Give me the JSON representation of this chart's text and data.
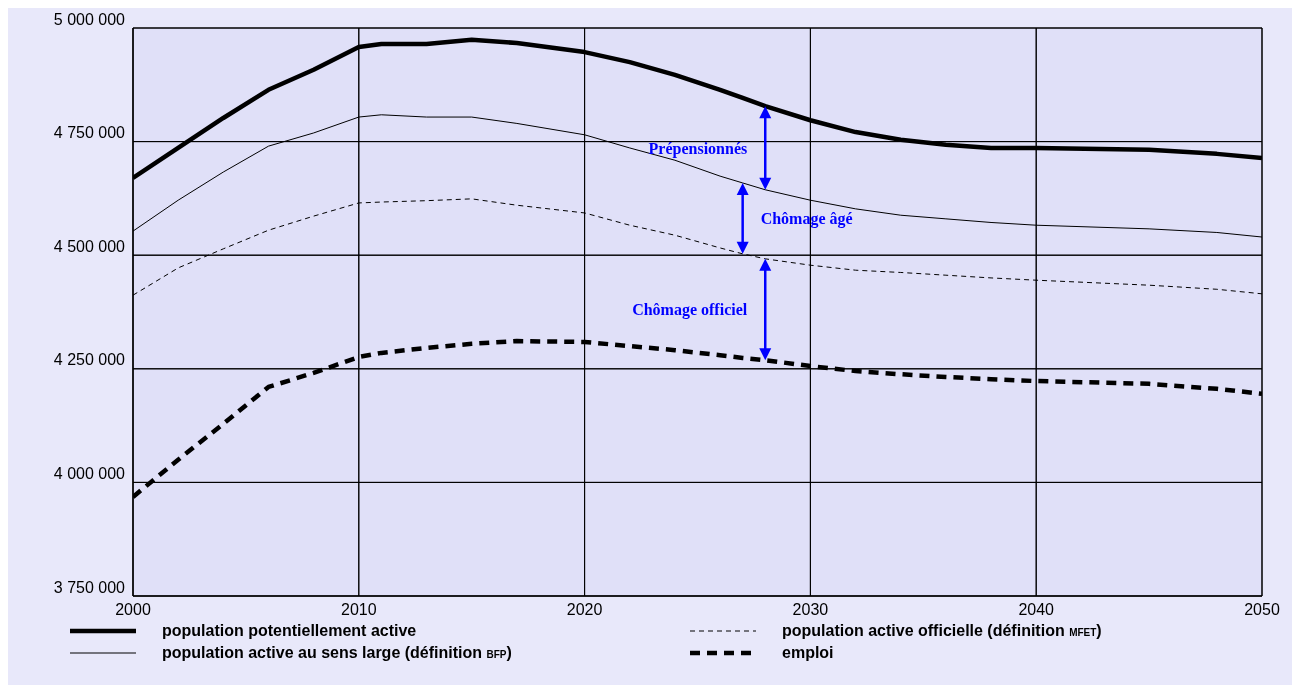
{
  "chart_data": {
    "type": "line",
    "x": [
      2000,
      2002,
      2004,
      2006,
      2008,
      2010,
      2011,
      2013,
      2015,
      2017,
      2020,
      2022,
      2024,
      2026,
      2027,
      2028,
      2030,
      2032,
      2034,
      2036,
      2038,
      2040,
      2045,
      2048,
      2050
    ],
    "series": [
      {
        "name": "population potentiellement active",
        "color": "#000000",
        "line_style": "solid",
        "values": [
          4670000,
          4736000,
          4802000,
          4864000,
          4908000,
          4958000,
          4965000,
          4965000,
          4974000,
          4967000,
          4947000,
          4925000,
          4897000,
          4864000,
          4846000,
          4828000,
          4797000,
          4771000,
          4754000,
          4743000,
          4736000,
          4736000,
          4732000,
          4723000,
          4714000
        ]
      },
      {
        "name": "population active au sens large (définition $_{BFP}$)",
        "color": "#000000",
        "line_style": "solid",
        "values": [
          4553000,
          4621000,
          4683000,
          4740000,
          4769000,
          4804000,
          4809000,
          4804000,
          4804000,
          4790000,
          4765000,
          4736000,
          4709000,
          4674000,
          4659000,
          4644000,
          4621000,
          4602000,
          4588000,
          4580000,
          4572000,
          4566000,
          4558000,
          4550000,
          4540000
        ]
      },
      {
        "name": "population active officielle (définition $_{MFET}$)",
        "color": "#000000",
        "line_style": "dashed",
        "values": [
          4412000,
          4472000,
          4514000,
          4555000,
          4586000,
          4615000,
          4617000,
          4620000,
          4624000,
          4610000,
          4593000,
          4566000,
          4544000,
          4516000,
          4503000,
          4492000,
          4478000,
          4467000,
          4462000,
          4456000,
          4450000,
          4445000,
          4434000,
          4425000,
          4415000
        ]
      },
      {
        "name": "emploi",
        "color": "#000000",
        "line_style": "dashed",
        "values": [
          3968000,
          4050000,
          4129000,
          4210000,
          4241000,
          4276000,
          4285000,
          4296000,
          4305000,
          4311000,
          4309000,
          4300000,
          4291000,
          4280000,
          4274000,
          4269000,
          4256000,
          4245000,
          4238000,
          4232000,
          4227000,
          4223000,
          4217000,
          4206000,
          4195000
        ]
      }
    ],
    "xlim": [
      2000,
      2050
    ],
    "xticks": [
      2000,
      2010,
      2020,
      2030,
      2040,
      2050
    ],
    "ylim": [
      3750000,
      5000000
    ],
    "yticks": [
      {
        "value": 3750000,
        "label": "3 750 000"
      },
      {
        "value": 4000000,
        "label": "4 000 000"
      },
      {
        "value": 4250000,
        "label": "4 250 000"
      },
      {
        "value": 4500000,
        "label": "4 500 000"
      },
      {
        "value": 4750000,
        "label": "4 750 000"
      },
      {
        "value": 5000000,
        "label": "5 000 000"
      }
    ],
    "annotations": [
      "Prépensionnés",
      "Chômage âgé",
      "Chômage officiel"
    ],
    "grid": true,
    "legend": "bottom",
    "marker": "none"
  }
}
